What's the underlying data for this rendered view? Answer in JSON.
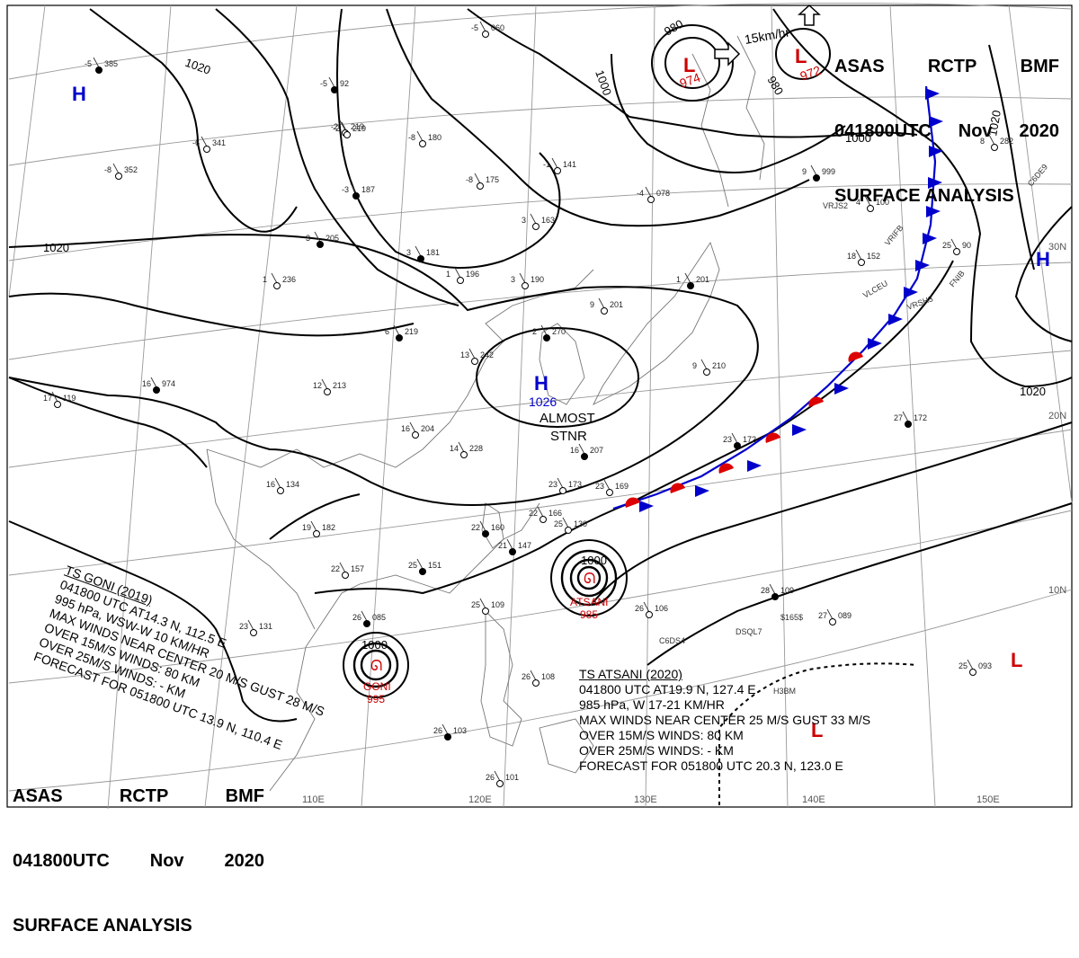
{
  "header": {
    "agency": "ASAS",
    "code1": "RCTP",
    "code2": "BMF",
    "time": "041800UTC",
    "month": "Nov",
    "year": "2020",
    "product": "SURFACE ANALYSIS"
  },
  "isobar_labels": [
    "1020",
    "1020",
    "1020",
    "1020",
    "1000",
    "1000",
    "1000",
    "980",
    "980",
    "1000"
  ],
  "pressure_centers": [
    {
      "type": "H",
      "value": "",
      "color": "#0000cc"
    },
    {
      "type": "H",
      "value": "1026",
      "color": "#0000cc"
    },
    {
      "type": "H",
      "value": "",
      "color": "#0000cc"
    },
    {
      "type": "L",
      "value": "974",
      "color": "#cc0000"
    },
    {
      "type": "L",
      "value": "972",
      "color": "#cc0000"
    },
    {
      "type": "L",
      "value": "",
      "color": "#cc0000"
    },
    {
      "type": "L",
      "value": "",
      "color": "#cc0000"
    }
  ],
  "almost_stnr": [
    "ALMOST",
    "STNR"
  ],
  "motion_label": "15km/hr",
  "latitude_labels": [
    "30N",
    "20N",
    "10N"
  ],
  "longitude_labels": [
    "110E",
    "120E",
    "130E",
    "140E",
    "150E"
  ],
  "goni": {
    "name": "TS  GONI  (2019)",
    "line1": "041800 UTC  AT14.3 N, 112.5 E",
    "line2": "995 hPa, WSW-W  10 KM/HR",
    "line3": "MAX WINDS NEAR CENTER 20 M/S GUST 28 M/S",
    "line4": "OVER 15M/S WINDS: 80 KM",
    "line5": "OVER 25M/S WINDS: - KM",
    "line6": "FORECAST FOR 051800 UTC 13.9 N, 110.4 E",
    "center_label": "GONI",
    "center_pressure": "995",
    "isobar": "1000"
  },
  "atsani": {
    "name": "TS  ATSANI  (2020)",
    "line1": "041800 UTC   AT19.9 N, 127.4 E",
    "line2": "985 hPa, W  17-21 KM/HR",
    "line3": "MAX WINDS NEAR CENTER 25 M/S GUST 33 M/S",
    "line4": "OVER 15M/S WINDS: 80 KM",
    "line5": "OVER 25M/S WINDS: - KM",
    "line6": "FORECAST FOR 051800 UTC 20.3 N, 123.0 E",
    "center_label": "ATSANI",
    "center_pressure": "985",
    "isobar": "1000"
  },
  "station_plots": [
    {
      "t": "-5",
      "p": "385"
    },
    {
      "t": "-8",
      "p": "352"
    },
    {
      "t": "-6",
      "p": "341"
    },
    {
      "t": "-5",
      "p": "92"
    },
    {
      "t": "-2",
      "p": "219"
    },
    {
      "t": "-8",
      "p": "180"
    },
    {
      "t": "-3",
      "p": "187"
    },
    {
      "t": "-8",
      "p": "175"
    },
    {
      "t": "-1",
      "p": "141"
    },
    {
      "t": "3",
      "p": "205"
    },
    {
      "t": "3",
      "p": "163"
    },
    {
      "t": "1",
      "p": "236"
    },
    {
      "t": "3",
      "p": "181"
    },
    {
      "t": "1",
      "p": "196"
    },
    {
      "t": "3",
      "p": "190"
    },
    {
      "t": "6",
      "p": "219"
    },
    {
      "t": "12",
      "p": "213"
    },
    {
      "t": "13",
      "p": "242"
    },
    {
      "t": "2",
      "p": "270"
    },
    {
      "t": "9",
      "p": "201"
    },
    {
      "t": "17",
      "p": "119"
    },
    {
      "t": "16",
      "p": "974"
    },
    {
      "t": "16",
      "p": "204"
    },
    {
      "t": "14",
      "p": "228"
    },
    {
      "t": "16",
      "p": "207"
    },
    {
      "t": "23",
      "p": "173"
    },
    {
      "t": "23",
      "p": "169"
    },
    {
      "t": "22",
      "p": "160"
    },
    {
      "t": "22",
      "p": "166"
    },
    {
      "t": "25",
      "p": "130"
    },
    {
      "t": "21",
      "p": "147"
    },
    {
      "t": "19",
      "p": "182"
    },
    {
      "t": "16",
      "p": "134"
    },
    {
      "t": "25",
      "p": "151"
    },
    {
      "t": "22",
      "p": "157"
    },
    {
      "t": "23",
      "p": "131"
    },
    {
      "t": "26",
      "p": "085"
    },
    {
      "t": "25",
      "p": "109"
    },
    {
      "t": "26",
      "p": "106"
    },
    {
      "t": "28",
      "p": "109"
    },
    {
      "t": "27",
      "p": "089"
    },
    {
      "t": "25",
      "p": "093"
    },
    {
      "t": "27",
      "p": "172"
    },
    {
      "t": "25",
      "p": "90"
    },
    {
      "t": "18",
      "p": "152"
    },
    {
      "t": "9",
      "p": "999"
    },
    {
      "t": "8",
      "p": "282"
    },
    {
      "t": "-4",
      "p": "078"
    },
    {
      "t": "26",
      "p": "103"
    },
    {
      "t": "26",
      "p": "101"
    },
    {
      "t": "26",
      "p": "108"
    },
    {
      "t": "23",
      "p": "172"
    },
    {
      "t": "-5",
      "p": "060"
    },
    {
      "t": "9",
      "p": "210"
    },
    {
      "t": "1",
      "p": "201"
    },
    {
      "t": "-2",
      "p": "219"
    },
    {
      "t": "4",
      "p": "100"
    }
  ],
  "ship_calls": [
    "VRJS2",
    "VRIFB",
    "VRSH3",
    "C6DE9",
    "C6DS4",
    "DSQL7",
    "H3BM",
    "$165$",
    "VLCEU",
    "FNIB"
  ]
}
